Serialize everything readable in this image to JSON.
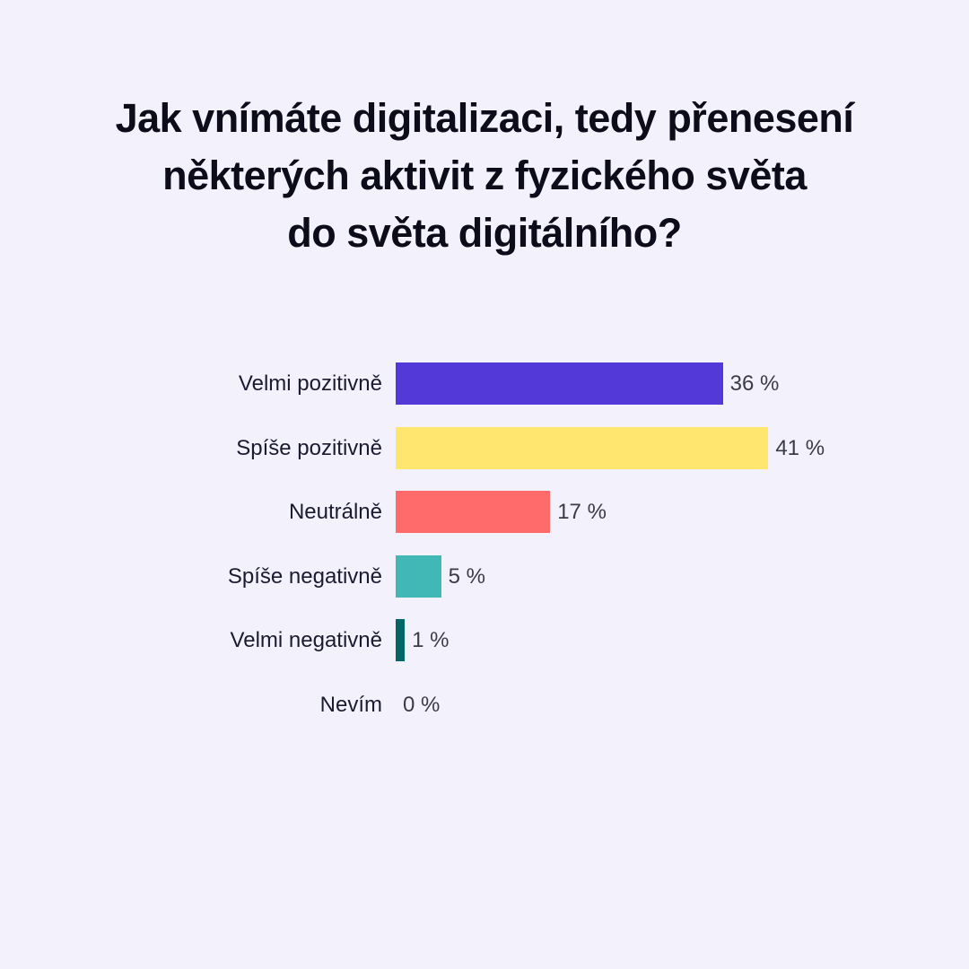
{
  "title_lines": [
    "Jak vnímáte digitalizaci, tedy přenesení",
    "některých aktivit z fyzického světa",
    "do světa digitálního?"
  ],
  "chart_data": {
    "type": "bar",
    "orientation": "horizontal",
    "title": "Jak vnímáte digitalizaci, tedy přenesení některých aktivit z fyzického světa do světa digitálního?",
    "xlabel": "",
    "ylabel": "",
    "grid": false,
    "legend": null,
    "categories": [
      "Velmi pozitivně",
      "Spíše pozitivně",
      "Neutrálně",
      "Spíše negativně",
      "Velmi negativně",
      "Nevím"
    ],
    "values": [
      36,
      41,
      17,
      5,
      1,
      0
    ],
    "value_labels": [
      "36 %",
      "41 %",
      "17 %",
      "5 %",
      "1 %",
      "0 %"
    ],
    "colors": [
      "#5239d8",
      "#ffe66e",
      "#ff6b6b",
      "#42b8b6",
      "#006666",
      "#cccccc"
    ],
    "unit": "%"
  }
}
